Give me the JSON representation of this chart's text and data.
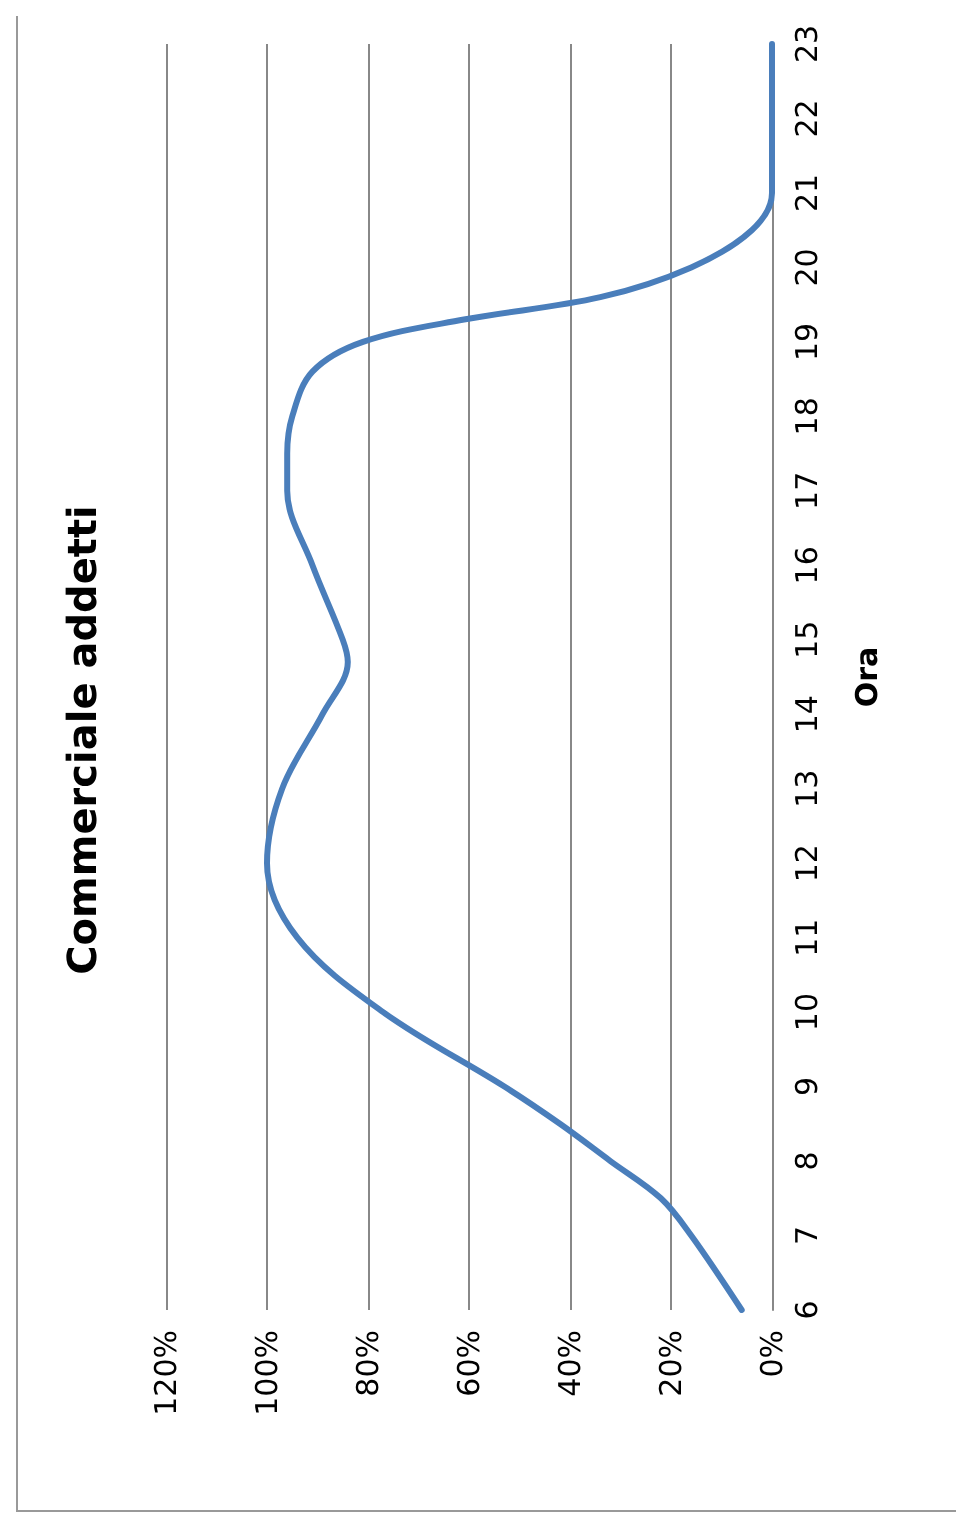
{
  "chart_data": {
    "type": "line",
    "title": "Commerciale addetti",
    "ylabel": "Ora",
    "series": [
      {
        "color": "#4a7ebb",
        "x": [
          6,
          16,
          22,
          32,
          42,
          53,
          77,
          94,
          100,
          97,
          89,
          84,
          85,
          91,
          96,
          96,
          95,
          91,
          81,
          61,
          34,
          16,
          4,
          0,
          0,
          0
        ],
        "values": [
          6,
          7,
          7.5,
          8,
          8.5,
          9,
          10,
          11,
          12,
          13,
          14,
          14.7,
          15,
          16,
          17,
          17.5,
          18,
          18.6,
          19,
          19.3,
          19.6,
          20,
          20.5,
          21,
          22,
          23
        ]
      }
    ],
    "xlim": [
      120,
      0
    ],
    "xticks": [
      {
        "value": 0,
        "label": "0%"
      },
      {
        "value": 20,
        "label": "20%"
      },
      {
        "value": 40,
        "label": "40%"
      },
      {
        "value": 60,
        "label": "60%"
      },
      {
        "value": 80,
        "label": "80%"
      },
      {
        "value": 100,
        "label": "100%"
      },
      {
        "value": 120,
        "label": "120%"
      }
    ],
    "ylim": [
      6,
      23
    ],
    "yticks": [
      6,
      7,
      8,
      9,
      10,
      11,
      12,
      13,
      14,
      15,
      16,
      17,
      18,
      19,
      20,
      21,
      22,
      23
    ],
    "grid": "x",
    "marker": "none",
    "line_style": "solid"
  }
}
